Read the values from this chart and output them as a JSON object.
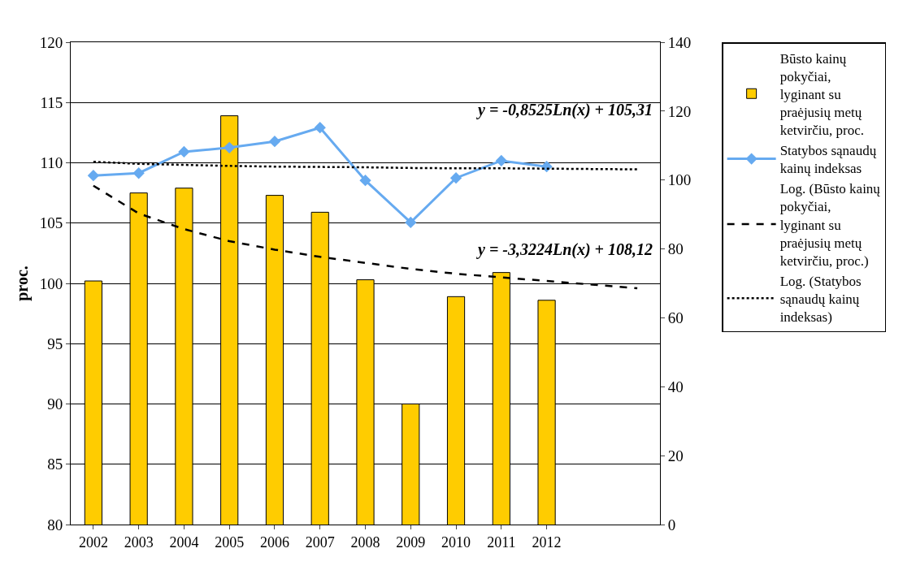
{
  "chart_data": {
    "type": "bar",
    "categories": [
      "2002",
      "2003",
      "2004",
      "2005",
      "2006",
      "2007",
      "2008",
      "2009",
      "2010",
      "2011",
      "2012",
      null,
      null
    ],
    "ylabel": "proc.",
    "ylim": [
      80,
      120
    ],
    "yticks": [
      80,
      85,
      90,
      95,
      100,
      105,
      110,
      115,
      120
    ],
    "y2lim": [
      0,
      140
    ],
    "y2ticks": [
      0,
      20,
      40,
      60,
      80,
      100,
      120,
      140
    ],
    "grid": "y",
    "legend": "right",
    "series": [
      {
        "name": "Būsto kainų pokyčiai, lyginant su praėjusių metų ketvirčiu, proc.",
        "color": "#ffcc00",
        "values": [
          100.2,
          107.5,
          107.9,
          113.9,
          107.3,
          105.9,
          100.3,
          90.0,
          98.9,
          100.9,
          98.6,
          null,
          null
        ]
      },
      {
        "name": "Statybos sąnaudų kainų indeksas",
        "type": "line",
        "axis": "y2",
        "color": "#66aaf0",
        "marker": "diamond",
        "line_style": "solid",
        "values": [
          101.3,
          102.0,
          108.2,
          109.4,
          111.2,
          115.2,
          99.9,
          87.7,
          100.6,
          105.6,
          103.9,
          null,
          null
        ]
      },
      {
        "name": "Log. (Būsto kainų pokyčiai, lyginant su praėjusių metų ketvirčiu, proc.)",
        "type": "line",
        "color": "#000000",
        "marker": "none",
        "line_style": "dashed",
        "values": [
          108.1,
          105.8,
          104.5,
          103.5,
          102.8,
          102.2,
          101.7,
          101.2,
          100.8,
          100.5,
          100.2,
          99.9,
          99.6
        ]
      },
      {
        "name": "Log. (Statybos sąnaudų kainų indeksas)",
        "type": "line",
        "axis": "y2",
        "color": "#000000",
        "marker": "none",
        "line_style": "dotted",
        "values": [
          105.3,
          104.7,
          104.4,
          104.1,
          103.9,
          103.8,
          103.7,
          103.5,
          103.4,
          103.4,
          103.3,
          103.2,
          103.1
        ]
      }
    ],
    "annotations": [
      "y = -0,8525Ln(x) + 105,31",
      "y = -3,3224Ln(x) + 108,12"
    ]
  }
}
